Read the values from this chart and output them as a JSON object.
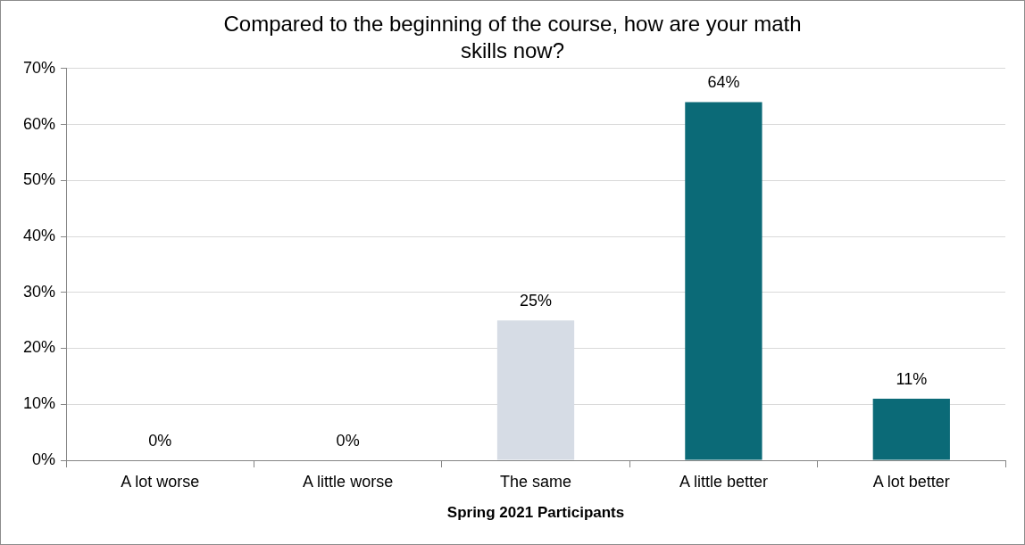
{
  "chart_data": {
    "type": "bar",
    "title": "Compared to the beginning of the course, how are your math skills now?",
    "xlabel": "Spring 2021 Participants",
    "categories": [
      "A lot worse",
      "A little worse",
      "The same",
      "A little better",
      "A lot better"
    ],
    "values": [
      0,
      0,
      25,
      64,
      11
    ],
    "colors": [
      "#d6dce5",
      "#d6dce5",
      "#d6dce5",
      "#0b6a77",
      "#0b6a77"
    ],
    "value_labels": [
      "0%",
      "0%",
      "25%",
      "64%",
      "11%"
    ],
    "ylim": [
      0,
      70
    ],
    "yticks": [
      {
        "value": 0,
        "label": "0%"
      },
      {
        "value": 10,
        "label": "10%"
      },
      {
        "value": 20,
        "label": "20%"
      },
      {
        "value": 30,
        "label": "30%"
      },
      {
        "value": 40,
        "label": "40%"
      },
      {
        "value": 50,
        "label": "50%"
      },
      {
        "value": 60,
        "label": "60%"
      },
      {
        "value": 70,
        "label": "70%"
      }
    ],
    "grid": "y",
    "legend": false
  }
}
